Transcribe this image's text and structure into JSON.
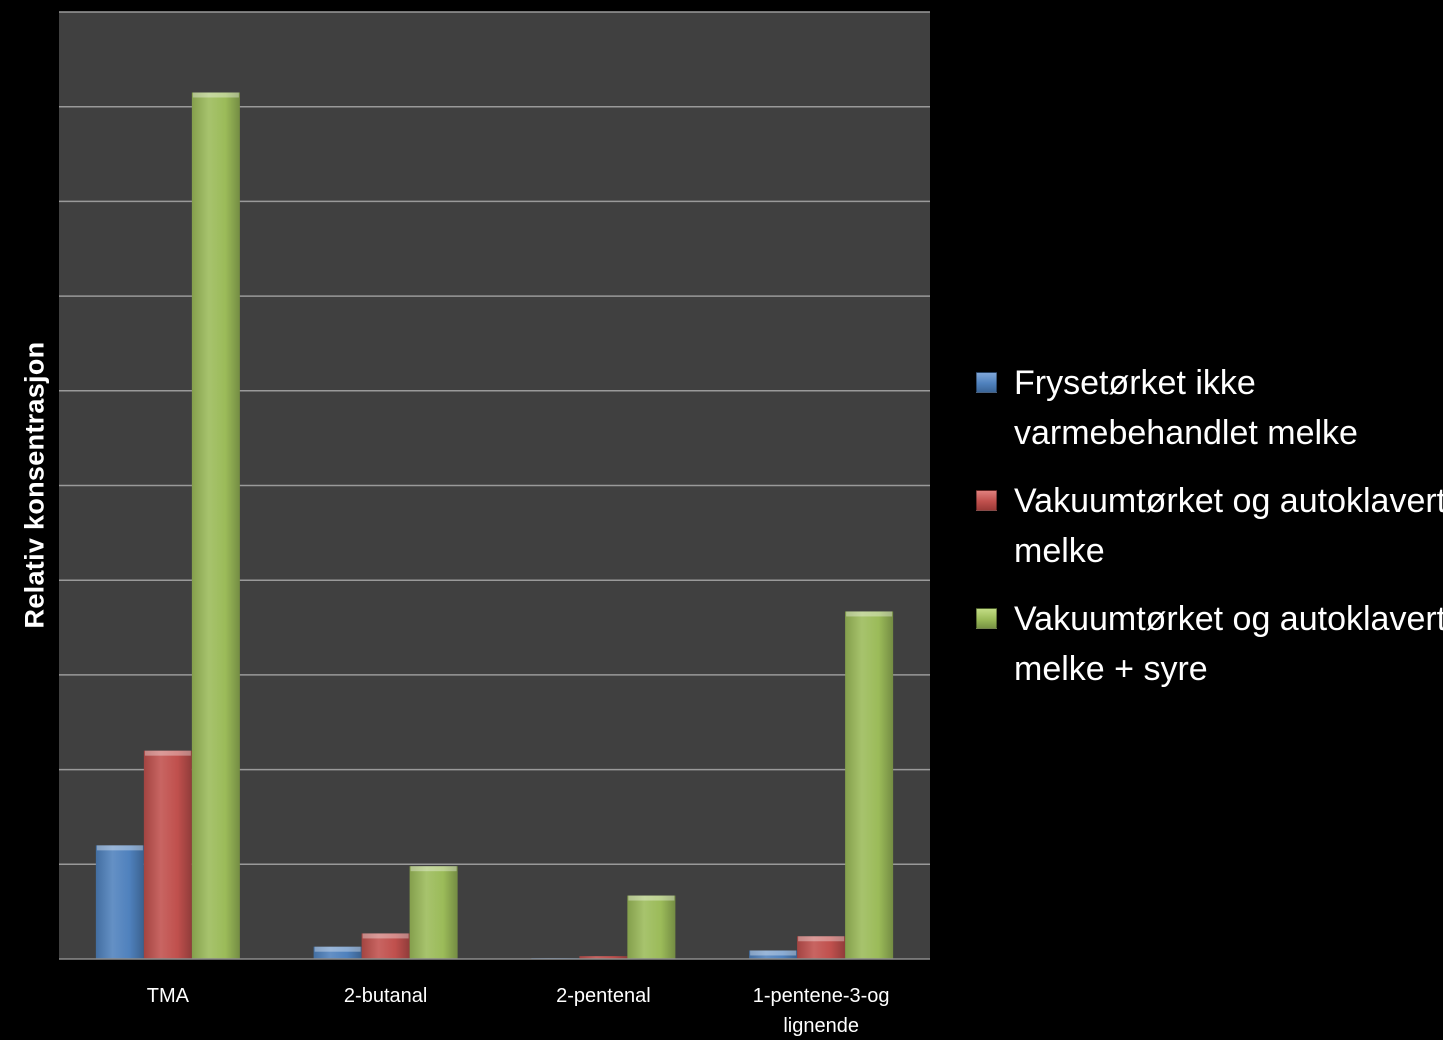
{
  "chart_data": {
    "type": "bar",
    "title": "",
    "xlabel": "",
    "ylabel": "Relativ konsentrasjon",
    "categories": [
      "TMA",
      "2-butanal",
      "2-pentenal",
      "1-pentene-3-og lignende"
    ],
    "series": [
      {
        "name": "Frysetørket ikke varmebehandlet melke",
        "color": "#4f81bd",
        "values": [
          1.2,
          0.13,
          0.01,
          0.09
        ]
      },
      {
        "name": "Vakuumtørket og autoklavert melke",
        "color": "#c0504d",
        "values": [
          2.2,
          0.27,
          0.03,
          0.24
        ]
      },
      {
        "name": "Vakuumtørket og autoklavert melke + syre",
        "color": "#9bbb59",
        "values": [
          9.15,
          0.98,
          0.67,
          3.67
        ]
      }
    ],
    "ylim": [
      0,
      10
    ],
    "grid": true,
    "ytick_labels": false,
    "legend": "right"
  },
  "colors": {
    "background": "#000000",
    "plot_area": "#404040",
    "gridline": "#9a9a9a",
    "text": "#ffffff"
  }
}
